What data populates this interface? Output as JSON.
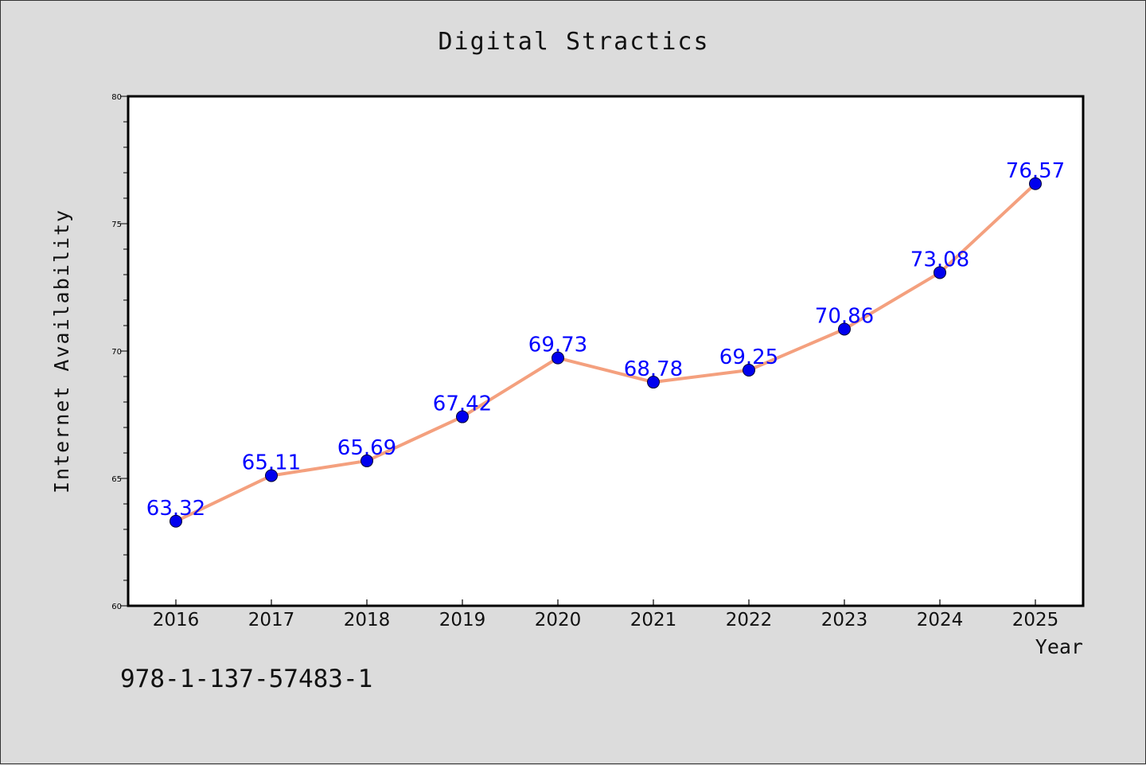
{
  "figure": {
    "title": "Digital Stractics",
    "footer_text": "978-1-137-57483-1",
    "background": "#dcdcdc"
  },
  "chart_data": {
    "type": "line",
    "title": "Digital Stractics",
    "xlabel": "Year",
    "ylabel": "Internet Availability",
    "categories": [
      "2016",
      "2017",
      "2018",
      "2019",
      "2020",
      "2021",
      "2022",
      "2023",
      "2024",
      "2025"
    ],
    "series": [
      {
        "values": [
          63.32,
          65.11,
          65.69,
          67.42,
          69.73,
          68.78,
          69.25,
          70.86,
          73.08,
          76.57
        ],
        "line_color": "#f4a07e",
        "marker_color": "#0000ee",
        "label_color": "#0000ff"
      }
    ],
    "data_labels": [
      "63.32",
      "65.11",
      "65.69",
      "67.42",
      "69.73",
      "68.78",
      "69.25",
      "70.86",
      "73.08",
      "76.57"
    ],
    "ylim": [
      60,
      80
    ],
    "yticks": [
      "60",
      "65",
      "70",
      "75",
      "80"
    ],
    "y_minor_step": 1,
    "grid": false,
    "legend": "none"
  }
}
